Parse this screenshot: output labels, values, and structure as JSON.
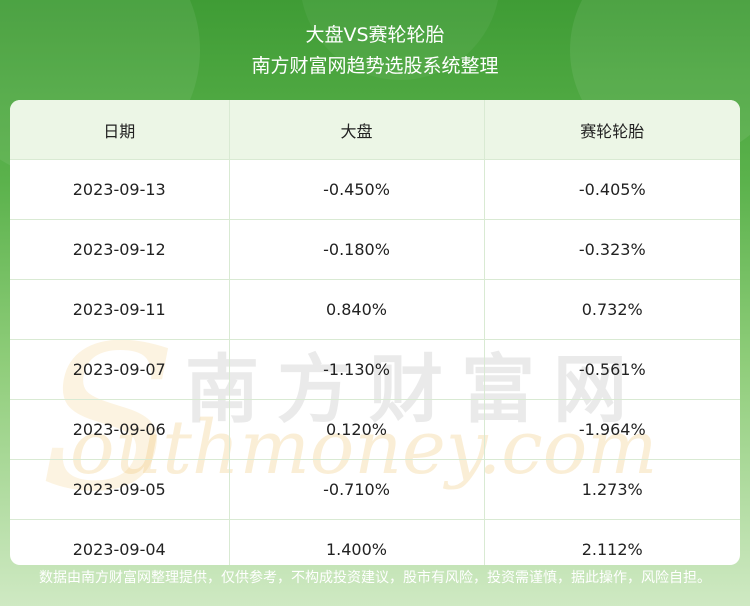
{
  "header": {
    "title": "大盘VS赛轮轮胎",
    "subtitle": "南方财富网趋势选股系统整理"
  },
  "table": {
    "headers": [
      "日期",
      "大盘",
      "赛轮轮胎"
    ],
    "rows": [
      [
        "2023-09-13",
        "-0.450%",
        "-0.405%"
      ],
      [
        "2023-09-12",
        "-0.180%",
        "-0.323%"
      ],
      [
        "2023-09-11",
        "0.840%",
        "0.732%"
      ],
      [
        "2023-09-07",
        "-1.130%",
        "-0.561%"
      ],
      [
        "2023-09-06",
        "0.120%",
        "-1.964%"
      ],
      [
        "2023-09-05",
        "-0.710%",
        "1.273%"
      ],
      [
        "2023-09-04",
        "1.400%",
        "2.112%"
      ]
    ]
  },
  "watermark": {
    "cn": "南方财富网",
    "s": "S",
    "en": "outhmoney.com"
  },
  "footer": {
    "disclaimer": "数据由南方财富网整理提供，仅供参考，不构成投资建议，股市有风险，投资需谨慎，据此操作，风险自担。"
  }
}
